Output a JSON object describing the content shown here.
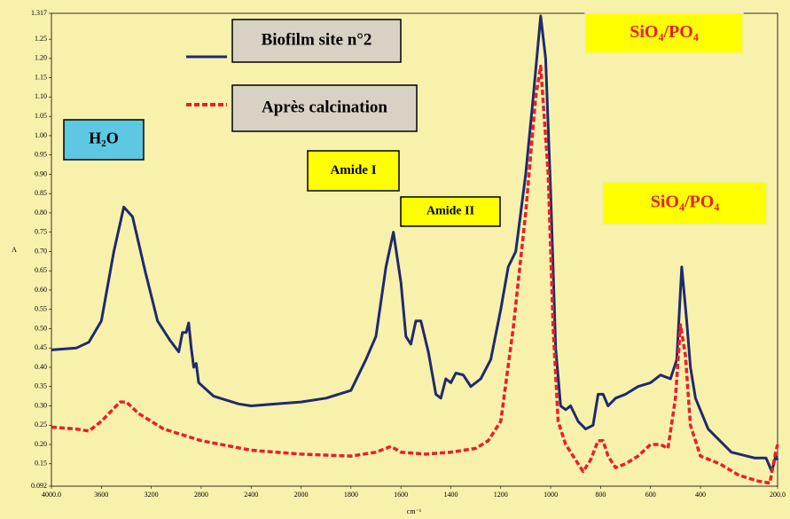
{
  "chart_data": {
    "type": "line",
    "xlabel": "cm⁻¹",
    "ylabel": "A",
    "xlim": [
      4000,
      200
    ],
    "ylim": [
      0.092,
      1.317
    ],
    "xticks": [
      {
        "value": 4000,
        "label": "4000.0"
      },
      3600,
      3200,
      2800,
      2400,
      2000,
      1800,
      1600,
      1400,
      1200,
      1000,
      800,
      600,
      400,
      {
        "value": 200,
        "label": "200.0"
      }
    ],
    "yticks": [
      0.092,
      0.15,
      {
        "value": 0.2,
        "label": "0.20"
      },
      0.25,
      {
        "value": 0.3,
        "label": "0.30"
      },
      0.35,
      {
        "value": 0.4,
        "label": "0.40"
      },
      0.45,
      {
        "value": 0.5,
        "label": "0.50"
      },
      0.55,
      {
        "value": 0.6,
        "label": "0.60"
      },
      0.65,
      {
        "value": 0.7,
        "label": "0.70"
      },
      0.75,
      {
        "value": 0.8,
        "label": "0.80"
      },
      0.85,
      {
        "value": 0.9,
        "label": "0.90"
      },
      0.95,
      {
        "value": 1,
        "label": "1.00"
      },
      1.05,
      {
        "value": 1.1,
        "label": "1.10"
      },
      1.15,
      {
        "value": 1.2,
        "label": "1.20"
      },
      1.25,
      1.317
    ],
    "series": [
      {
        "name": "Biofilm site n°2",
        "color": "#1f2a6e",
        "dash": false,
        "x": [
          4000,
          3800,
          3700,
          3600,
          3500,
          3420,
          3350,
          3250,
          3150,
          3050,
          2980,
          2950,
          2920,
          2900,
          2880,
          2860,
          2840,
          2820,
          2700,
          2500,
          2400,
          2200,
          2000,
          1900,
          1800,
          1740,
          1700,
          1660,
          1630,
          1600,
          1580,
          1560,
          1540,
          1520,
          1490,
          1460,
          1440,
          1420,
          1400,
          1380,
          1350,
          1320,
          1280,
          1240,
          1200,
          1170,
          1140,
          1100,
          1070,
          1040,
          1020,
          1000,
          980,
          960,
          940,
          920,
          890,
          860,
          830,
          810,
          790,
          770,
          740,
          700,
          650,
          600,
          560,
          520,
          495,
          475,
          455,
          440,
          420,
          380,
          320,
          260,
          230,
          215,
          205,
          200
        ],
        "values": [
          0.445,
          0.45,
          0.465,
          0.52,
          0.7,
          0.815,
          0.79,
          0.65,
          0.52,
          0.47,
          0.44,
          0.49,
          0.49,
          0.515,
          0.45,
          0.4,
          0.41,
          0.36,
          0.325,
          0.305,
          0.3,
          0.305,
          0.31,
          0.32,
          0.34,
          0.42,
          0.48,
          0.66,
          0.75,
          0.62,
          0.48,
          0.46,
          0.52,
          0.52,
          0.44,
          0.33,
          0.32,
          0.37,
          0.36,
          0.385,
          0.38,
          0.35,
          0.37,
          0.42,
          0.55,
          0.66,
          0.7,
          0.9,
          1.1,
          1.31,
          1.2,
          0.85,
          0.45,
          0.3,
          0.29,
          0.3,
          0.26,
          0.24,
          0.25,
          0.33,
          0.33,
          0.3,
          0.32,
          0.33,
          0.35,
          0.36,
          0.38,
          0.37,
          0.42,
          0.66,
          0.52,
          0.4,
          0.32,
          0.24,
          0.18,
          0.165,
          0.165,
          0.13,
          0.17,
          0.16
        ]
      },
      {
        "name": "Après calcination",
        "color": "#e8202a",
        "dash": true,
        "x": [
          4000,
          3800,
          3700,
          3600,
          3450,
          3400,
          3300,
          3100,
          2800,
          2400,
          2000,
          1800,
          1700,
          1640,
          1600,
          1500,
          1400,
          1300,
          1250,
          1200,
          1150,
          1100,
          1060,
          1040,
          1010,
          990,
          970,
          940,
          900,
          870,
          840,
          810,
          790,
          770,
          740,
          700,
          650,
          600,
          560,
          530,
          500,
          480,
          460,
          440,
          400,
          350,
          300,
          250,
          220,
          205,
          200
        ],
        "values": [
          0.245,
          0.24,
          0.235,
          0.26,
          0.31,
          0.31,
          0.28,
          0.24,
          0.21,
          0.185,
          0.175,
          0.17,
          0.18,
          0.195,
          0.18,
          0.175,
          0.18,
          0.19,
          0.21,
          0.26,
          0.5,
          0.8,
          1.1,
          1.18,
          0.9,
          0.5,
          0.26,
          0.2,
          0.16,
          0.13,
          0.16,
          0.21,
          0.21,
          0.17,
          0.14,
          0.15,
          0.17,
          0.2,
          0.2,
          0.19,
          0.32,
          0.51,
          0.43,
          0.25,
          0.17,
          0.15,
          0.12,
          0.105,
          0.1,
          0.18,
          0.2
        ]
      }
    ],
    "annotations": [
      {
        "text": "H₂O"
      },
      {
        "text": "Amide I"
      },
      {
        "text": "Amide II"
      },
      {
        "text": "SiO₄/PO₄"
      },
      {
        "text": "SiO₄/PO₄"
      }
    ]
  }
}
